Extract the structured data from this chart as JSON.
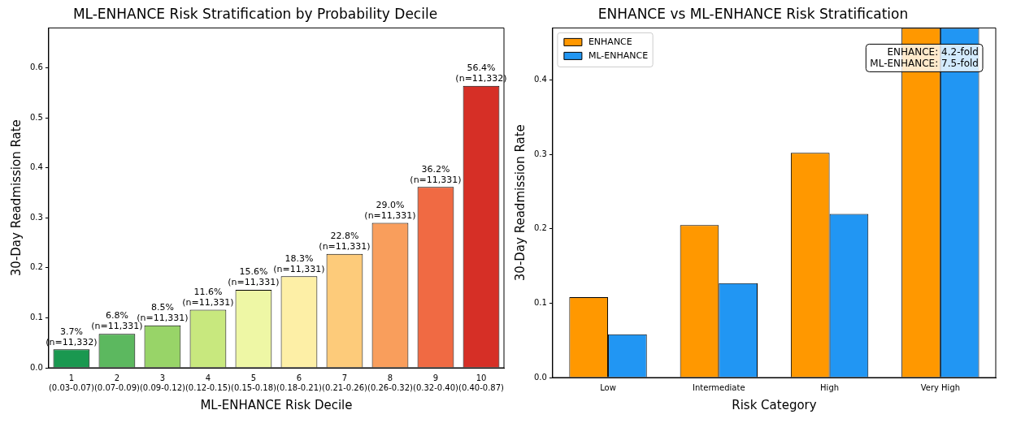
{
  "chart_data": [
    {
      "type": "bar",
      "title": "ML-ENHANCE Risk Stratification by Probability Decile",
      "xlabel": "ML-ENHANCE Risk Decile",
      "ylabel": "30-Day Readmission Rate",
      "categories": [
        "1\n(0.03-0.07)",
        "2\n(0.07-0.09)",
        "3\n(0.09-0.12)",
        "4\n(0.12-0.15)",
        "5\n(0.15-0.18)",
        "6\n(0.18-0.21)",
        "7\n(0.21-0.26)",
        "8\n(0.26-0.32)",
        "9\n(0.32-0.40)",
        "10\n(0.40-0.87)"
      ],
      "values": [
        0.037,
        0.068,
        0.085,
        0.116,
        0.156,
        0.183,
        0.228,
        0.29,
        0.362,
        0.564
      ],
      "colors": [
        "#1a9850",
        "#5cb85f",
        "#98d468",
        "#c8e87e",
        "#eef7a5",
        "#fdefa6",
        "#fdcb7a",
        "#f99e5c",
        "#f06a43",
        "#d62f26"
      ],
      "value_labels": [
        "3.7%\n(n=11,332)",
        "6.8%\n(n=11,331)",
        "8.5%\n(n=11,331)",
        "11.6%\n(n=11,331)",
        "15.6%\n(n=11,331)",
        "18.3%\n(n=11,331)",
        "22.8%\n(n=11,331)",
        "29.0%\n(n=11,331)",
        "36.2%\n(n=11,331)",
        "56.4%\n(n=11,332)"
      ],
      "ylim": [
        0,
        0.68
      ],
      "yticks": [
        {
          "value": 0,
          "label": "0.0"
        },
        0.1,
        0.2,
        0.3,
        0.4,
        0.5,
        0.6
      ],
      "grid": false,
      "legend": false
    },
    {
      "type": "bar",
      "title": "ENHANCE vs ML-ENHANCE Risk Stratification",
      "xlabel": "Risk Category",
      "ylabel": "30-Day Readmission Rate",
      "categories": [
        "Low",
        "Intermediate",
        "High",
        "Very High"
      ],
      "series": [
        {
          "name": "ENHANCE",
          "color": "#ff9800",
          "values": [
            0.108,
            0.205,
            0.302,
            0.47
          ]
        },
        {
          "name": "ML-ENHANCE",
          "color": "#2196f3",
          "values": [
            0.058,
            0.127,
            0.22,
            0.47
          ]
        }
      ],
      "annotations": [
        "ENHANCE: 4.2-fold\nML-ENHANCE: 7.5-fold"
      ],
      "ylim": [
        0,
        0.47
      ],
      "yticks": [
        {
          "value": 0,
          "label": "0.0"
        },
        0.1,
        0.2,
        0.3,
        0.4
      ],
      "grid": false,
      "legend": "top left"
    }
  ]
}
